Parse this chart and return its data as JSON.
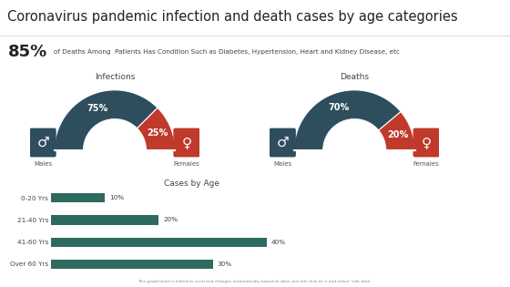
{
  "title": "Coronavirus pandemic infection and death cases by age categories",
  "title_fontsize": 10.5,
  "stat_pct": "85%",
  "stat_text": "of Deaths Among  Patients Has Condition Such as Diabetes, Hypertension, Heart and Kidney Disease, etc",
  "infections_title": "Infections",
  "deaths_title": "Deaths",
  "infections_male_pct": 75,
  "infections_female_pct": 25,
  "deaths_male_pct": 70,
  "deaths_female_pct": 20,
  "male_color": "#2e4e5e",
  "female_color": "#c0392b",
  "age_title": "Cases by Age",
  "age_categories": [
    "0-20 Yrs",
    "21-40 Yrs",
    "41-60 Yrs",
    "Over 60 Yrs"
  ],
  "age_values": [
    10,
    20,
    40,
    30
  ],
  "bar_color": "#2e6b5e",
  "bg_color": "#ffffff",
  "stat_bg": "#f5f5f5",
  "footer_text": "This graph/chart is linked to excel and changes automatically based on data. Just left click on it and select 'edit data'.",
  "img_bg": "#e8eae8",
  "divider_color": "#cccccc"
}
